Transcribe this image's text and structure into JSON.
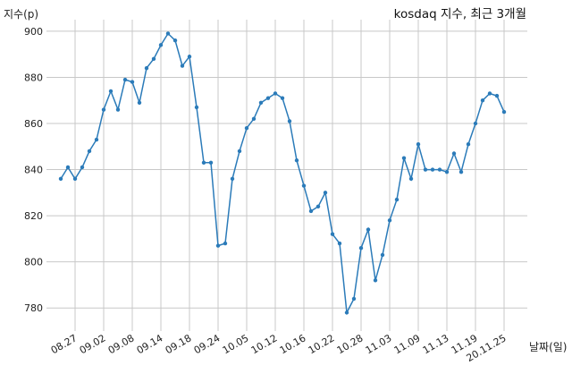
{
  "chart_data": {
    "type": "line",
    "title": "kosdaq 지수, 최근 3개월",
    "xlabel": "날짜(일)",
    "ylabel": "지수(p)",
    "ylim": [
      770,
      905
    ],
    "yticks": [
      780,
      800,
      820,
      840,
      860,
      880,
      900
    ],
    "grid": true,
    "color": "#2b7bb9",
    "xtick_labels": [
      "08.27",
      "09.02",
      "09.08",
      "09.14",
      "09.18",
      "09.24",
      "10.05",
      "10.12",
      "10.16",
      "10.22",
      "10.28",
      "11.03",
      "11.09",
      "11.13",
      "11.19",
      "20.11.25"
    ],
    "xtick_positions": [
      2,
      6,
      10,
      14,
      18,
      22,
      26,
      30,
      34,
      38,
      42,
      46,
      50,
      54,
      58,
      62
    ],
    "series": [
      {
        "values": [
          836,
          841,
          836,
          841,
          848,
          853,
          866,
          874,
          866,
          879,
          878,
          869,
          884,
          888,
          894,
          899,
          896,
          885,
          889,
          867,
          843,
          843,
          807,
          808,
          836,
          848,
          858,
          862,
          869,
          871,
          873,
          871,
          861,
          844,
          833,
          822,
          824,
          830,
          812,
          808,
          778,
          784,
          806,
          814,
          792,
          803,
          818,
          827,
          845,
          836,
          851,
          840,
          840,
          840,
          839,
          847,
          839,
          851,
          860,
          870,
          873,
          872,
          865
        ]
      }
    ]
  }
}
